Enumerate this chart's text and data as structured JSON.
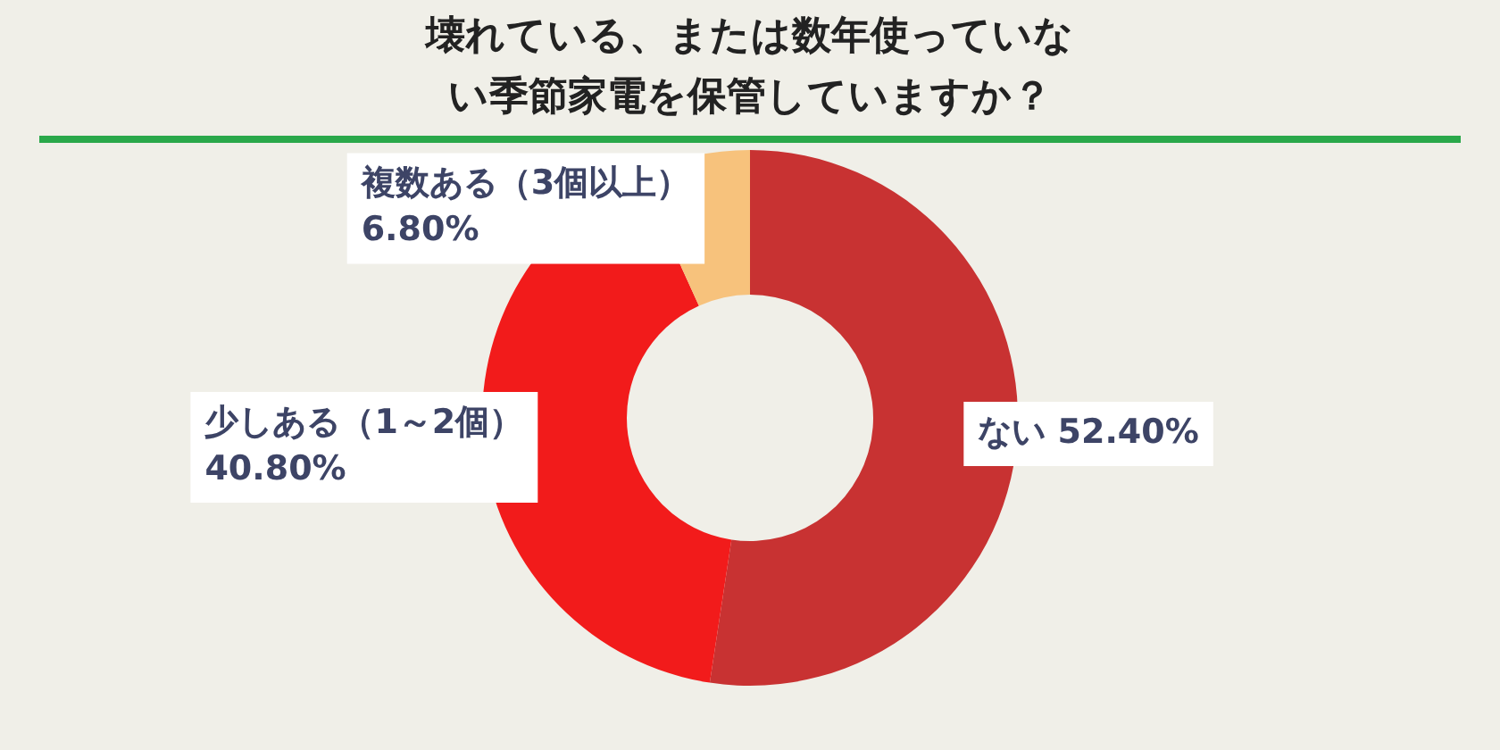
{
  "chart_data": {
    "type": "donut",
    "title": "壊れている、または数年使っていない季節家電を保管していますか？",
    "categories": [
      "ない",
      "少しある（1～2個）",
      "複数ある（3個以上）"
    ],
    "values": [
      52.4,
      40.8,
      6.8
    ],
    "colors": [
      "#c83232",
      "#f21b1b",
      "#f7c27c"
    ],
    "value_labels": [
      "52.40%",
      "40.80%",
      "6.80%"
    ],
    "legend": false
  }
}
